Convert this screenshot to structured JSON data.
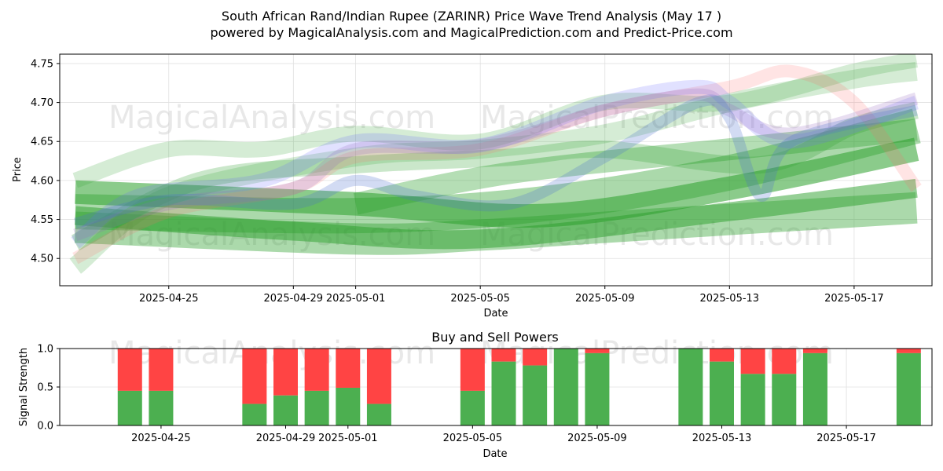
{
  "title_line1": "South African Rand/Indian Rupee (ZARINR) Price Wave Trend Analysis (May 17 )",
  "title_line2": "powered by MagicalAnalysis.com and MagicalPrediction.com and Predict-Price.com",
  "watermarks": [
    "MagicalAnalysis.com",
    "MagicalPrediction.com"
  ],
  "colors": {
    "green": "#2ca02c",
    "red": "#ff4444",
    "buy": "#4caf50",
    "blue": "#6b6bff",
    "purple": "#9467bd",
    "orange": "#e8a070"
  },
  "chart_data": [
    {
      "type": "line",
      "xlabel": "Date",
      "ylabel": "Price",
      "ylim": [
        4.465,
        4.762
      ],
      "x_range": [
        "2025-04-21T12:00",
        "2025-05-19T12:00"
      ],
      "x_ticks": [
        "2025-04-25",
        "2025-04-29",
        "2025-05-01",
        "2025-05-05",
        "2025-05-09",
        "2025-05-13",
        "2025-05-17"
      ],
      "y_ticks": [
        "4.50",
        "4.55",
        "4.60",
        "4.65",
        "4.70",
        "4.75"
      ],
      "grid": true,
      "series": [
        {
          "color": "#2ca02c",
          "opacity": 0.55,
          "width": 30,
          "points": [
            [
              "2025-04-22",
              4.585
            ],
            [
              "2025-05-01",
              4.57
            ],
            [
              "2025-05-07",
              4.555
            ],
            [
              "2025-05-13",
              4.59
            ],
            [
              "2025-05-19",
              4.64
            ]
          ]
        },
        {
          "color": "#2ca02c",
          "opacity": 0.5,
          "width": 24,
          "points": [
            [
              "2025-04-22",
              4.555
            ],
            [
              "2025-04-29",
              4.535
            ],
            [
              "2025-05-05",
              4.525
            ],
            [
              "2025-05-13",
              4.56
            ],
            [
              "2025-05-19",
              4.59
            ]
          ]
        },
        {
          "color": "#2ca02c",
          "opacity": 0.4,
          "width": 40,
          "points": [
            [
              "2025-04-22",
              4.54
            ],
            [
              "2025-05-01",
              4.525
            ],
            [
              "2025-05-05",
              4.53
            ],
            [
              "2025-05-09",
              4.54
            ],
            [
              "2025-05-19",
              4.565
            ]
          ]
        },
        {
          "color": "#2ca02c",
          "opacity": 0.4,
          "width": 45,
          "points": [
            [
              "2025-04-22",
              4.56
            ],
            [
              "2025-05-01",
              4.555
            ],
            [
              "2025-05-07",
              4.57
            ],
            [
              "2025-05-13",
              4.61
            ],
            [
              "2025-05-19",
              4.67
            ]
          ]
        },
        {
          "color": "#2ca02c",
          "opacity": 0.35,
          "width": 28,
          "points": [
            [
              "2025-05-01",
              4.57
            ],
            [
              "2025-05-06",
              4.61
            ],
            [
              "2025-05-13",
              4.64
            ],
            [
              "2025-05-19",
              4.665
            ]
          ]
        },
        {
          "color": "#2ca02c",
          "opacity": 0.2,
          "width": 24,
          "points": [
            [
              "2025-04-22",
              4.49
            ],
            [
              "2025-04-25",
              4.58
            ],
            [
              "2025-05-01",
              4.63
            ],
            [
              "2025-05-05",
              4.64
            ],
            [
              "2025-05-09",
              4.66
            ],
            [
              "2025-05-13",
              4.7
            ],
            [
              "2025-05-17",
              4.73
            ],
            [
              "2025-05-19",
              4.74
            ]
          ]
        },
        {
          "color": "#2ca02c",
          "opacity": 0.2,
          "width": 20,
          "points": [
            [
              "2025-04-22",
              4.6
            ],
            [
              "2025-04-25",
              4.64
            ],
            [
              "2025-04-28",
              4.64
            ],
            [
              "2025-05-01",
              4.66
            ],
            [
              "2025-05-05",
              4.65
            ],
            [
              "2025-05-09",
              4.7
            ],
            [
              "2025-05-13",
              4.7
            ],
            [
              "2025-05-17",
              4.74
            ],
            [
              "2025-05-19",
              4.755
            ]
          ]
        },
        {
          "color": "#2ca02c",
          "opacity": 0.25,
          "width": 22,
          "points": [
            [
              "2025-04-22",
              4.52
            ],
            [
              "2025-04-26",
              4.6
            ],
            [
              "2025-05-01",
              4.62
            ],
            [
              "2025-05-06",
              4.63
            ],
            [
              "2025-05-09",
              4.64
            ],
            [
              "2025-05-14",
              4.62
            ],
            [
              "2025-05-17",
              4.67
            ],
            [
              "2025-05-19",
              4.69
            ]
          ]
        },
        {
          "color": "#ff6a6a",
          "opacity": 0.18,
          "width": 16,
          "points": [
            [
              "2025-04-22",
              4.5
            ],
            [
              "2025-04-25",
              4.56
            ],
            [
              "2025-04-29",
              4.59
            ],
            [
              "2025-05-01",
              4.63
            ],
            [
              "2025-05-05",
              4.64
            ],
            [
              "2025-05-09",
              4.69
            ],
            [
              "2025-05-13",
              4.72
            ],
            [
              "2025-05-15",
              4.74
            ],
            [
              "2025-05-17",
              4.7
            ],
            [
              "2025-05-19",
              4.59
            ]
          ]
        },
        {
          "color": "#6b6bff",
          "opacity": 0.2,
          "width": 18,
          "points": [
            [
              "2025-04-22",
              4.52
            ],
            [
              "2025-04-24",
              4.58
            ],
            [
              "2025-04-28",
              4.6
            ],
            [
              "2025-05-01",
              4.65
            ],
            [
              "2025-05-05",
              4.645
            ],
            [
              "2025-05-09",
              4.7
            ],
            [
              "2025-05-12",
              4.72
            ],
            [
              "2025-05-13",
              4.7
            ],
            [
              "2025-05-15",
              4.65
            ],
            [
              "2025-05-19",
              4.7
            ]
          ]
        },
        {
          "color": "#9467bd",
          "opacity": 0.22,
          "width": 16,
          "points": [
            [
              "2025-04-22",
              4.53
            ],
            [
              "2025-04-25",
              4.57
            ],
            [
              "2025-04-29",
              4.59
            ],
            [
              "2025-05-01",
              4.64
            ],
            [
              "2025-05-05",
              4.645
            ],
            [
              "2025-05-09",
              4.69
            ],
            [
              "2025-05-12",
              4.71
            ],
            [
              "2025-05-13",
              4.69
            ],
            [
              "2025-05-15",
              4.66
            ],
            [
              "2025-05-19",
              4.705
            ]
          ]
        },
        {
          "color": "#4a6fd0",
          "opacity": 0.25,
          "width": 14,
          "points": [
            [
              "2025-04-22",
              4.545
            ],
            [
              "2025-04-25",
              4.575
            ],
            [
              "2025-04-29",
              4.57
            ],
            [
              "2025-05-01",
              4.6
            ],
            [
              "2025-05-03",
              4.58
            ],
            [
              "2025-05-06",
              4.57
            ],
            [
              "2025-05-09",
              4.63
            ],
            [
              "2025-05-12",
              4.7
            ],
            [
              "2025-05-13",
              4.68
            ],
            [
              "2025-05-14",
              4.58
            ],
            [
              "2025-05-15",
              4.65
            ],
            [
              "2025-05-19",
              4.69
            ]
          ]
        }
      ]
    },
    {
      "type": "bar",
      "title": "Buy and Sell Powers",
      "xlabel": "Date",
      "ylabel": "Signal Strength",
      "ylim": [
        0,
        1
      ],
      "y_ticks": [
        "0.0",
        "0.5",
        "1.0"
      ],
      "series": [
        {
          "name": "buy",
          "color": "#4caf50"
        },
        {
          "name": "sell",
          "color": "#ff4444"
        }
      ],
      "bars": [
        {
          "date": "2025-04-24",
          "buy": 0.45
        },
        {
          "date": "2025-04-25",
          "buy": 0.45
        },
        {
          "date": "2025-04-28",
          "buy": 0.28
        },
        {
          "date": "2025-04-29",
          "buy": 0.39
        },
        {
          "date": "2025-04-30",
          "buy": 0.45
        },
        {
          "date": "2025-05-01",
          "buy": 0.49
        },
        {
          "date": "2025-05-02",
          "buy": 0.28
        },
        {
          "date": "2025-05-05",
          "buy": 0.45
        },
        {
          "date": "2025-05-06",
          "buy": 0.83
        },
        {
          "date": "2025-05-07",
          "buy": 0.78
        },
        {
          "date": "2025-05-08",
          "buy": 1.0
        },
        {
          "date": "2025-05-09",
          "buy": 0.94
        },
        {
          "date": "2025-05-12",
          "buy": 1.0
        },
        {
          "date": "2025-05-13",
          "buy": 0.83
        },
        {
          "date": "2025-05-14",
          "buy": 0.67
        },
        {
          "date": "2025-05-15",
          "buy": 0.67
        },
        {
          "date": "2025-05-16",
          "buy": 0.94
        },
        {
          "date": "2025-05-19",
          "buy": 0.94
        }
      ]
    }
  ]
}
